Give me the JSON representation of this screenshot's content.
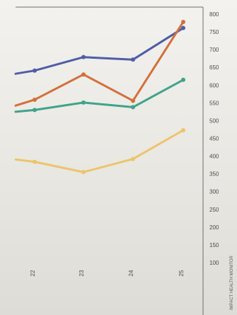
{
  "chart_data": {
    "type": "line",
    "categories": [
      "22",
      "23",
      "24",
      "25"
    ],
    "ylim": [
      100,
      800
    ],
    "y_ticks": [
      "800",
      "750",
      "700",
      "650",
      "600",
      "550",
      "500",
      "450",
      "400",
      "350",
      "300",
      "250",
      "200",
      "150",
      "100"
    ],
    "y_axis_position": "right",
    "grid": false,
    "series": [
      {
        "color": "#4f5da6",
        "values": [
          641,
          679,
          672,
          761
        ]
      },
      {
        "color": "#d36f3b",
        "values": [
          559,
          630,
          556,
          778
        ]
      },
      {
        "color": "#3fa38a",
        "values": [
          530,
          551,
          538,
          615
        ]
      },
      {
        "color": "#edc46c",
        "values": [
          384,
          355,
          392,
          473
        ]
      }
    ]
  },
  "margin_note": "IMPACT HEALTH MONITOR"
}
